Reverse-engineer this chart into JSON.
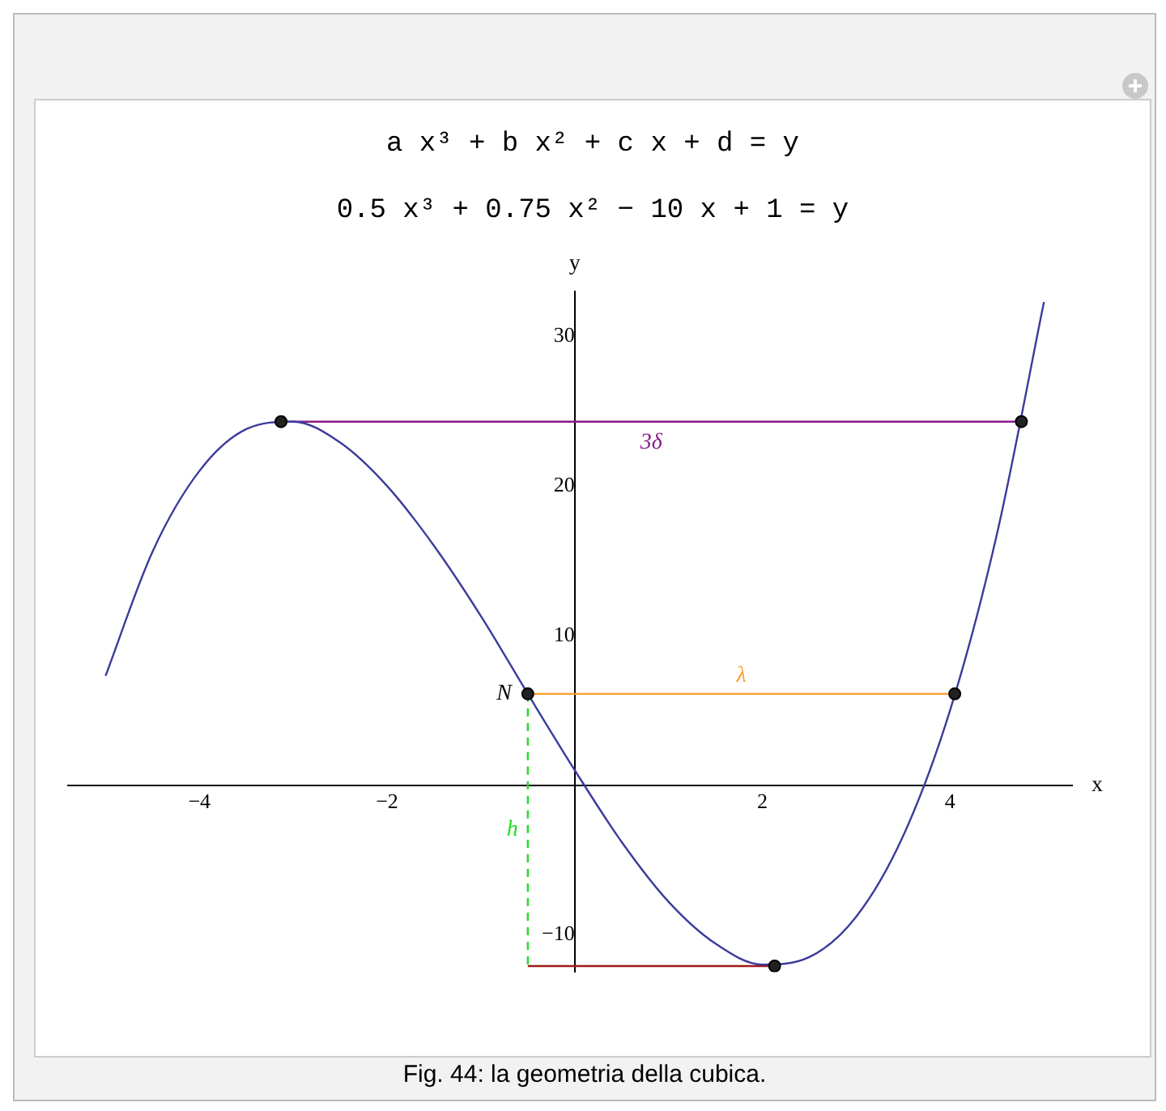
{
  "chart_data": {
    "type": "line",
    "title": "a x³ + b x² + c x + d = y",
    "subtitle": "0.5 x³ + 0.75 x² − 10 x + 1 = y",
    "xlabel": "x",
    "ylabel": "y",
    "xlim": [
      -5.4,
      5.3
    ],
    "ylim": [
      -12.5,
      33
    ],
    "xticks": [
      -4,
      -2,
      2,
      4
    ],
    "yticks": [
      -10,
      10,
      20,
      30
    ],
    "grid": false,
    "legend": false,
    "marker": "none",
    "series": [
      {
        "type": "line",
        "color": "#3b3b9b",
        "x": [
          -5,
          -4.5,
          -4,
          -3.5,
          -3,
          -2.5,
          -2,
          -1.5,
          -1,
          -0.5,
          0,
          0.5,
          1,
          1.5,
          2,
          2.5,
          3,
          3.5,
          4,
          4.5,
          5
        ],
        "values": [
          7.3,
          15.6,
          21,
          23.8,
          24.3,
          22.9,
          20,
          16,
          11.3,
          6.1,
          1,
          -3.8,
          -7.8,
          -10.6,
          -12,
          -11.5,
          -8.8,
          -3.4,
          5,
          16.8,
          32.3
        ]
      },
      {
        "type": "line",
        "name": "3δ",
        "color": "#8b1a8b",
        "x": [
          -3.13,
          4.76
        ],
        "values": [
          24.3,
          24.3
        ]
      },
      {
        "type": "line",
        "name": "λ",
        "color": "#ff9a2e",
        "x": [
          -0.5,
          4.05
        ],
        "values": [
          6.1,
          6.1
        ]
      },
      {
        "type": "line",
        "color": "#a01818",
        "x": [
          -0.5,
          2.13
        ],
        "values": [
          -12.1,
          -12.1
        ]
      },
      {
        "type": "line",
        "name": "h",
        "color": "#22dd22",
        "line_style": "dashed",
        "x": [
          -0.5,
          -0.5
        ],
        "values": [
          6.1,
          -12.1
        ]
      },
      {
        "type": "scatter",
        "color": "#000000",
        "marker": "circle",
        "x": [
          -3.13,
          4.76,
          -0.5,
          4.05,
          2.13
        ],
        "values": [
          24.3,
          24.3,
          6.1,
          6.1,
          -12.1
        ]
      }
    ],
    "annotations": [
      {
        "text": "N",
        "x": -0.5,
        "y": 6.1
      },
      "Fig. 44: la geometria della cubica."
    ]
  }
}
